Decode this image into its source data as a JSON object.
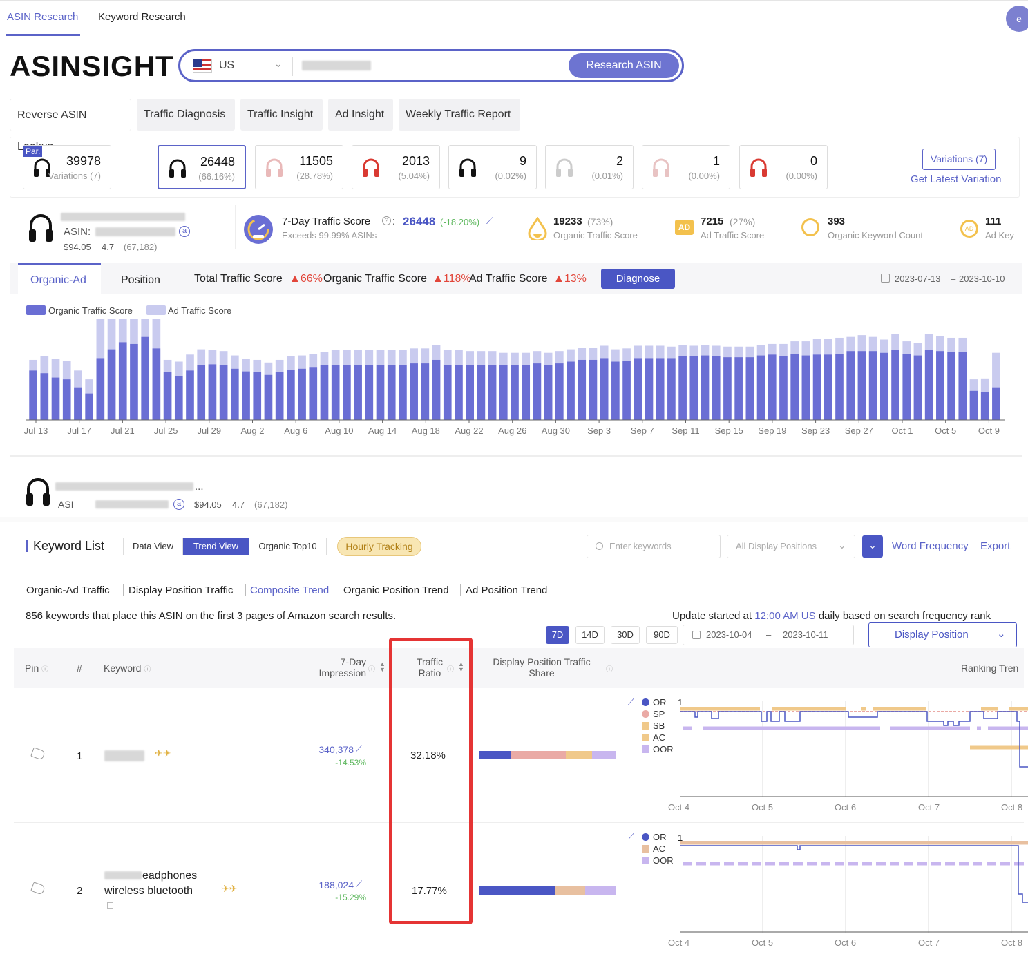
{
  "nav": {
    "tabs": [
      "ASIN Research",
      "Keyword Research"
    ],
    "avatar": "e"
  },
  "brand": {
    "logo": "ASINSIGHT",
    "accent": "#5b63c8"
  },
  "search": {
    "country": "US",
    "button": "Research ASIN"
  },
  "subtabs": [
    "Reverse ASIN Lookup",
    "Traffic Diagnosis",
    "Traffic Insight",
    "Ad Insight",
    "Weekly Traffic Report"
  ],
  "variations": {
    "par_badge": "Par.",
    "cards": [
      {
        "value": "39978",
        "sub": "Variations (7)",
        "color": "#111"
      },
      {
        "value": "26448",
        "sub": "(66.16%)",
        "color": "#111"
      },
      {
        "value": "11505",
        "sub": "(28.78%)",
        "color": "#e9b9b9"
      },
      {
        "value": "2013",
        "sub": "(5.04%)",
        "color": "#d93a32"
      },
      {
        "value": "9",
        "sub": "(0.02%)",
        "color": "#111"
      },
      {
        "value": "2",
        "sub": "(0.01%)",
        "color": "#ccc"
      },
      {
        "value": "1",
        "sub": "(0.00%)",
        "color": "#e8c3c3"
      },
      {
        "value": "0",
        "sub": "(0.00%)",
        "color": "#d93a32"
      }
    ],
    "button": "Variations (7)",
    "latest_link": "Get Latest Variation"
  },
  "product": {
    "asin_label": "ASIN:",
    "price": "$94.05",
    "rating": "4.7",
    "reviews": "(67,182)"
  },
  "traffic": {
    "seven_day_label": "7-Day Traffic Score",
    "seven_day_value": "26448",
    "seven_day_change": "(-18.20%)",
    "exceeds": "Exceeds 99.99% ASINs",
    "organic_value": "19233",
    "organic_pct": "(73%)",
    "organic_label": "Organic Traffic Score",
    "ad_value": "7215",
    "ad_pct": "(27%)",
    "ad_label": "Ad Traffic Score",
    "kw_value": "393",
    "kw_label": "Organic Keyword Count",
    "adkw_value": "111",
    "adkw_label": "Ad Key",
    "ad_badge": "AD"
  },
  "chart_tabs": {
    "tab1": "Organic-Ad",
    "tab2": "Position",
    "total_label": "Total Traffic Score",
    "total_change": "66%",
    "organic_label": "Organic Traffic Score",
    "organic_change": "118%",
    "ad_label": "Ad Traffic Score",
    "ad_change": "13%",
    "diagnose": "Diagnose",
    "date_from": "2023-07-13",
    "date_sep": "–",
    "date_to": "2023-10-10"
  },
  "chart_data": {
    "type": "bar",
    "stacked": true,
    "legend": [
      "Organic Traffic Score",
      "Ad Traffic Score"
    ],
    "colors": {
      "organic": "#6a6ed4",
      "ad": "#c9cbef"
    },
    "x_ticks": [
      "Jul 13",
      "Jul 17",
      "Jul 21",
      "Jul 25",
      "Jul 29",
      "Aug 2",
      "Aug 6",
      "Aug 10",
      "Aug 14",
      "Aug 18",
      "Aug 22",
      "Aug 26",
      "Aug 30",
      "Sep 3",
      "Sep 7",
      "Sep 11",
      "Sep 15",
      "Sep 19",
      "Sep 23",
      "Sep 27",
      "Oct 1",
      "Oct 5",
      "Oct 9"
    ],
    "series": [
      {
        "name": "Organic Traffic Score",
        "values": [
          2800,
          2650,
          2400,
          2300,
          1850,
          1500,
          3500,
          4000,
          4400,
          4300,
          4700,
          4050,
          2700,
          2500,
          2800,
          3100,
          3150,
          3100,
          2900,
          2750,
          2700,
          2550,
          2700,
          2850,
          2900,
          3000,
          3100,
          3100,
          3100,
          3100,
          3100,
          3100,
          3100,
          3100,
          3200,
          3200,
          3400,
          3100,
          3100,
          3100,
          3100,
          3100,
          3100,
          3100,
          3100,
          3200,
          3100,
          3200,
          3300,
          3400,
          3400,
          3500,
          3300,
          3350,
          3500,
          3500,
          3500,
          3500,
          3600,
          3600,
          3650,
          3600,
          3550,
          3550,
          3550,
          3650,
          3700,
          3600,
          3750,
          3650,
          3700,
          3700,
          3750,
          3900,
          3900,
          3900,
          3800,
          3950,
          3750,
          3650,
          3950,
          3900,
          3850,
          3850,
          1650,
          1600,
          1850
        ]
      },
      {
        "name": "Ad Traffic Score",
        "values": [
          600,
          950,
          1050,
          1050,
          950,
          800,
          2600,
          3300,
          3500,
          3400,
          3300,
          3400,
          700,
          800,
          900,
          900,
          800,
          800,
          750,
          700,
          700,
          700,
          700,
          750,
          750,
          750,
          750,
          850,
          850,
          850,
          850,
          850,
          850,
          850,
          850,
          850,
          850,
          850,
          850,
          800,
          800,
          800,
          700,
          700,
          700,
          700,
          700,
          700,
          700,
          700,
          700,
          700,
          700,
          700,
          700,
          700,
          700,
          650,
          650,
          600,
          600,
          600,
          600,
          600,
          600,
          600,
          600,
          700,
          700,
          800,
          900,
          900,
          900,
          800,
          900,
          800,
          750,
          900,
          700,
          700,
          900,
          850,
          800,
          800,
          650,
          750,
          1950
        ]
      }
    ]
  },
  "product2": {
    "asin_label": "ASI",
    "price": "$94.05",
    "rating": "4.7",
    "reviews": "(67,182)",
    "ellipsis": "..."
  },
  "keyword_list": {
    "title": "Keyword List",
    "views": [
      "Data View",
      "Trend View",
      "Organic Top10"
    ],
    "hourly": "Hourly Tracking",
    "search_placeholder": "Enter keywords",
    "positions_select": "All Display Positions",
    "word_freq": "Word Frequency",
    "export": "Export",
    "subviews": [
      "Organic-Ad Traffic",
      "Display Position Traffic",
      "Composite Trend",
      "Organic Position Trend",
      "Ad Position Trend"
    ],
    "summary": "856 keywords that place this ASIN on the first 3 pages of Amazon search results.",
    "update_prefix": "Update started at",
    "update_time": "12:00 AM US",
    "update_suffix": "daily based on search frequency rank",
    "periods": [
      "7D",
      "14D",
      "30D",
      "90D"
    ],
    "date_from": "2023-10-04",
    "date_to": "2023-10-11",
    "date_sep": "–",
    "display_position": "Display Position",
    "headers": {
      "pin": "Pin",
      "num": "#",
      "keyword": "Keyword",
      "impression_1": "7-Day",
      "impression_2": "Impression",
      "ratio_1": "Traffic",
      "ratio_2": "Ratio",
      "share_1": "Display Position Traffic",
      "share_2": "Share",
      "ranking": "Ranking Tren"
    },
    "rows": [
      {
        "num": "1",
        "keyword_line1": "",
        "keyword_line2": "",
        "impression": "340,378",
        "impression_change": "-14.53%",
        "ratio": "32.18%",
        "legend": [
          "OR",
          "SP",
          "SB",
          "AC",
          "OOR"
        ],
        "y_top": "1",
        "x_ticks": [
          "Oct 4",
          "Oct 5",
          "Oct 6",
          "Oct 7",
          "Oct 8"
        ]
      },
      {
        "num": "2",
        "keyword_line1": "eadphones",
        "keyword_line2": "wireless bluetooth",
        "impression": "188,024",
        "impression_change": "-15.29%",
        "ratio": "17.77%",
        "legend": [
          "OR",
          "AC",
          "OOR"
        ],
        "y_top": "1",
        "x_ticks": [
          "Oct 4",
          "Oct 5",
          "Oct 6",
          "Oct 7",
          "Oct 8"
        ]
      }
    ]
  }
}
